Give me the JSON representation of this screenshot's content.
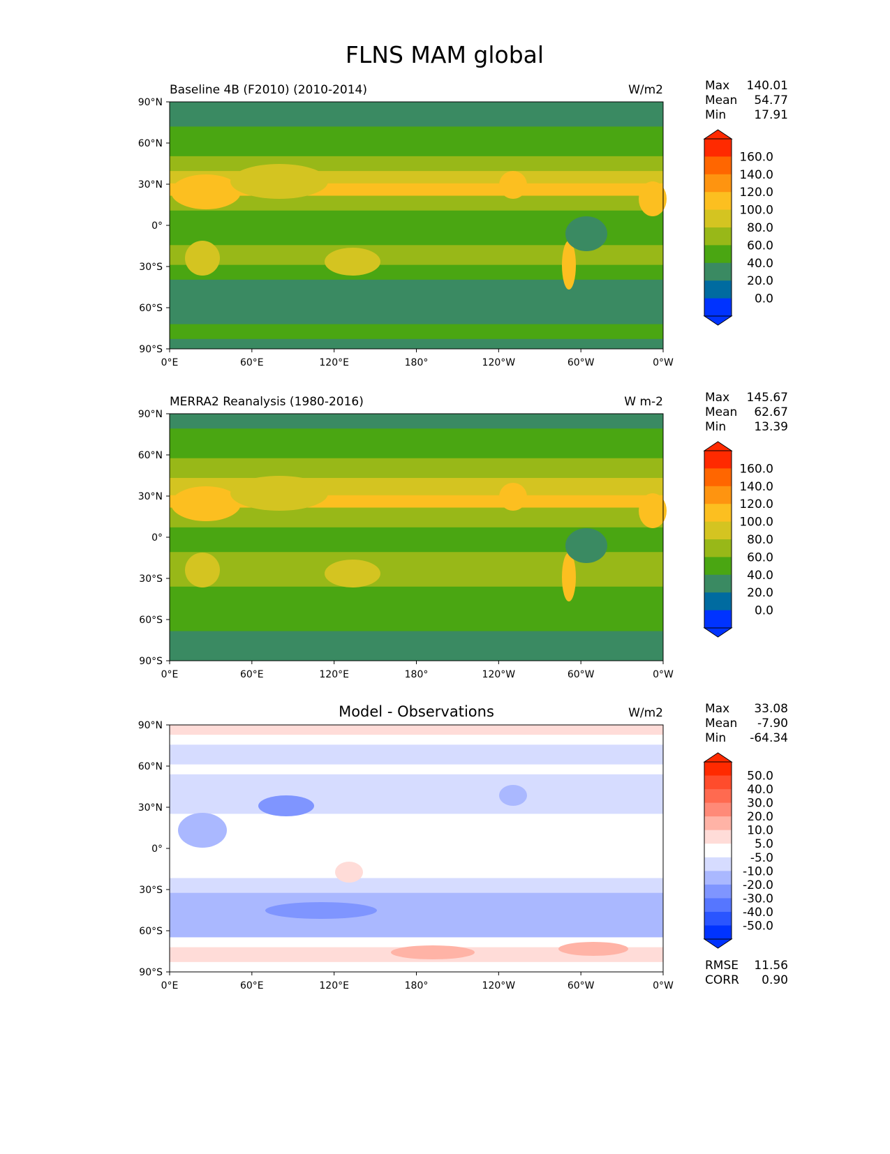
{
  "chart_data": {
    "type": "heatmap",
    "title": "FLNS MAM global",
    "x_ticks": [
      "0°E",
      "60°E",
      "120°E",
      "180°",
      "120°W",
      "60°W",
      "0°W"
    ],
    "y_ticks": [
      "90°N",
      "60°N",
      "30°N",
      "0°",
      "30°S",
      "60°S",
      "90°S"
    ],
    "xlim": [
      0,
      360
    ],
    "ylim": [
      -90,
      90
    ],
    "panels": [
      {
        "left_title": "Baseline 4B (F2010) (2010-2014)",
        "center_title": "",
        "units": "W/m2",
        "stats": [
          {
            "label": "Max",
            "value": "140.01"
          },
          {
            "label": "Mean",
            "value": "54.77"
          },
          {
            "label": "Min",
            "value": "17.91"
          }
        ],
        "colorbar": {
          "labels": [
            "160.0",
            "140.0",
            "120.0",
            "100.0",
            "80.0",
            "60.0",
            "40.0",
            "20.0",
            "0.0"
          ],
          "colors": [
            "#ff2a00",
            "#ff6600",
            "#fe9410",
            "#fcbf20",
            "#d4c421",
            "#98b818",
            "#4aa612",
            "#3a8a62",
            "#006ba0",
            "#0033ff"
          ]
        },
        "bands": [
          [
            "#3a8a62",
            0,
            10
          ],
          [
            "#4aa612",
            10,
            22
          ],
          [
            "#98b818",
            22,
            28
          ],
          [
            "#d4c421",
            28,
            33
          ],
          [
            "#fcbf20",
            33,
            38
          ],
          [
            "#98b818",
            38,
            44
          ],
          [
            "#4aa612",
            44,
            58
          ],
          [
            "#98b818",
            58,
            66
          ],
          [
            "#4aa612",
            66,
            72
          ],
          [
            "#3a8a62",
            72,
            90
          ],
          [
            "#4aa612",
            90,
            96
          ],
          [
            "#3a8a62",
            96,
            100
          ]
        ]
      },
      {
        "left_title": "MERRA2 Reanalysis (1980-2016)",
        "center_title": "",
        "units": "W m-2",
        "stats": [
          {
            "label": "Max",
            "value": "145.67"
          },
          {
            "label": "Mean",
            "value": "62.67"
          },
          {
            "label": "Min",
            "value": "13.39"
          }
        ],
        "colorbar": {
          "labels": [
            "160.0",
            "140.0",
            "120.0",
            "100.0",
            "80.0",
            "60.0",
            "40.0",
            "20.0",
            "0.0"
          ],
          "colors": [
            "#ff2a00",
            "#ff6600",
            "#fe9410",
            "#fcbf20",
            "#d4c421",
            "#98b818",
            "#4aa612",
            "#3a8a62",
            "#006ba0",
            "#0033ff"
          ]
        },
        "bands": [
          [
            "#3a8a62",
            0,
            6
          ],
          [
            "#4aa612",
            6,
            18
          ],
          [
            "#98b818",
            18,
            26
          ],
          [
            "#d4c421",
            26,
            33
          ],
          [
            "#fcbf20",
            33,
            38
          ],
          [
            "#98b818",
            38,
            46
          ],
          [
            "#4aa612",
            46,
            56
          ],
          [
            "#98b818",
            56,
            70
          ],
          [
            "#4aa612",
            70,
            88
          ],
          [
            "#3a8a62",
            88,
            100
          ]
        ]
      },
      {
        "left_title": "",
        "center_title": "Model - Observations",
        "units": "W/m2",
        "stats": [
          {
            "label": "Max",
            "value": "33.08"
          },
          {
            "label": "Mean",
            "value": "-7.90"
          },
          {
            "label": "Min",
            "value": "-64.34"
          }
        ],
        "extra_stats": [
          {
            "label": "RMSE",
            "value": "11.56"
          },
          {
            "label": "CORR",
            "value": "0.90"
          }
        ],
        "colorbar": {
          "labels": [
            "50.0",
            "40.0",
            "30.0",
            "20.0",
            "10.0",
            "5.0",
            "-5.0",
            "-10.0",
            "-20.0",
            "-30.0",
            "-40.0",
            "-50.0"
          ],
          "colors": [
            "#ff2a00",
            "#ff4c2c",
            "#ff6a50",
            "#ff8a78",
            "#ffb3a6",
            "#ffdcd8",
            "#ffffff",
            "#d6dcff",
            "#aab8ff",
            "#7f95ff",
            "#5676ff",
            "#2a55ff",
            "#0033ff"
          ]
        },
        "bands": [
          [
            "#ffdcd8",
            0,
            4
          ],
          [
            "#ffffff",
            4,
            8
          ],
          [
            "#d6dcff",
            8,
            16
          ],
          [
            "#ffffff",
            16,
            20
          ],
          [
            "#d6dcff",
            20,
            36
          ],
          [
            "#ffffff",
            36,
            62
          ],
          [
            "#d6dcff",
            62,
            68
          ],
          [
            "#aab8ff",
            68,
            86
          ],
          [
            "#ffffff",
            86,
            90
          ],
          [
            "#ffdcd8",
            90,
            96
          ],
          [
            "#ffffff",
            96,
            100
          ]
        ]
      }
    ]
  }
}
